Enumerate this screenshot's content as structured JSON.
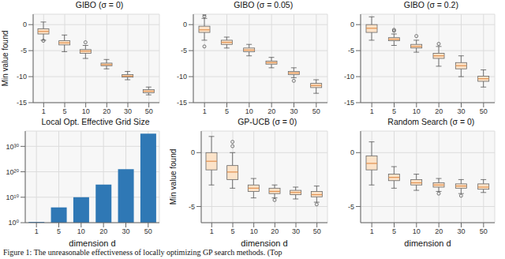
{
  "caption": "Figure 1: The unreasonable effectiveness of locally optimizing GP search methods. (Top",
  "chart_data": [
    {
      "type": "box",
      "title": "GIBO (σ = 0)",
      "ylabel": "Min value found",
      "categories": [
        1,
        5,
        10,
        20,
        30,
        50
      ],
      "ylim": [
        -15,
        2
      ],
      "yticks": [
        0,
        -5,
        -10,
        -15
      ],
      "grid": true,
      "color": "#fce3c9",
      "boxes": [
        {
          "min": -3,
          "q1": -1.8,
          "median": -1.3,
          "q3": -0.8,
          "max": 0.5,
          "outliers": [
            -3.1
          ]
        },
        {
          "min": -5.2,
          "q1": -3.9,
          "median": -3.5,
          "q3": -3.1,
          "max": -2.0,
          "outliers": []
        },
        {
          "min": -6.5,
          "q1": -5.5,
          "median": -5.1,
          "q3": -4.8,
          "max": -4.0,
          "outliers": [
            -3.4
          ]
        },
        {
          "min": -8.5,
          "q1": -7.9,
          "median": -7.7,
          "q3": -7.4,
          "max": -6.7,
          "outliers": []
        },
        {
          "min": -10.6,
          "q1": -10.1,
          "median": -9.9,
          "q3": -9.6,
          "max": -9.0,
          "outliers": []
        },
        {
          "min": -13.5,
          "q1": -13.1,
          "median": -12.8,
          "q3": -12.5,
          "max": -12.0,
          "outliers": []
        }
      ]
    },
    {
      "type": "box",
      "title": "GIBO (σ = 0.05)",
      "categories": [
        1,
        5,
        10,
        20,
        30,
        50
      ],
      "ylim": [
        -15,
        2
      ],
      "yticks": [
        0,
        -5,
        -10,
        -15
      ],
      "grid": true,
      "color": "#fce3c9",
      "boxes": [
        {
          "min": -3,
          "q1": -1.5,
          "median": -1,
          "q3": -0.3,
          "max": 1.2,
          "outliers": [
            2.0,
            1.6,
            -4.2
          ]
        },
        {
          "min": -4.5,
          "q1": -3.8,
          "median": -3.4,
          "q3": -3.0,
          "max": -2.4,
          "outliers": []
        },
        {
          "min": -6.0,
          "q1": -5.2,
          "median": -4.9,
          "q3": -4.5,
          "max": -3.8,
          "outliers": []
        },
        {
          "min": -8.3,
          "q1": -7.6,
          "median": -7.3,
          "q3": -7.0,
          "max": -6.3,
          "outliers": []
        },
        {
          "min": -10.2,
          "q1": -9.6,
          "median": -9.3,
          "q3": -9.0,
          "max": -8.3,
          "outliers": [
            -10.8
          ]
        },
        {
          "min": -13.2,
          "q1": -12.1,
          "median": -11.7,
          "q3": -11.3,
          "max": -10.6,
          "outliers": []
        }
      ]
    },
    {
      "type": "box",
      "title": "GIBO (σ = 0.2)",
      "categories": [
        1,
        5,
        10,
        20,
        30,
        50
      ],
      "ylim": [
        -15,
        2
      ],
      "yticks": [
        0,
        -5,
        -10,
        -15
      ],
      "grid": true,
      "color": "#fce3c9",
      "boxes": [
        {
          "min": -3,
          "q1": -1.5,
          "median": -0.7,
          "q3": 0,
          "max": 1.5,
          "outliers": []
        },
        {
          "min": -4,
          "q1": -3.1,
          "median": -2.8,
          "q3": -2.5,
          "max": -1.8,
          "outliers": [
            -1.2,
            -1.0
          ]
        },
        {
          "min": -5.3,
          "q1": -4.5,
          "median": -4.2,
          "q3": -3.8,
          "max": -3.0,
          "outliers": [
            -2.2
          ]
        },
        {
          "min": -8,
          "q1": -6.5,
          "median": -6.0,
          "q3": -5.5,
          "max": -4.2,
          "outliers": [
            -3.7
          ]
        },
        {
          "min": -10,
          "q1": -8.5,
          "median": -7.9,
          "q3": -7.3,
          "max": -6.0,
          "outliers": []
        },
        {
          "min": -12,
          "q1": -10.9,
          "median": -10.4,
          "q3": -9.9,
          "max": -8.7,
          "outliers": []
        }
      ]
    },
    {
      "type": "bar",
      "title": "Local Opt. Effective Grid Size",
      "xlabel": "dimension d",
      "categories": [
        1,
        5,
        10,
        20,
        30,
        50
      ],
      "values": [
        2,
        1000000,
        10000000000,
        1000000000000000.0,
        1e+21,
        1e+35
      ],
      "log": "y",
      "ylim": [
        1,
        1e+36
      ],
      "yticks": [
        {
          "value": 1,
          "label": "10⁰"
        },
        {
          "value": 10000000000,
          "label": "10¹⁰"
        },
        {
          "value": 1e+20,
          "label": "10²⁰"
        },
        {
          "value": 1e+30,
          "label": "10³⁰"
        }
      ],
      "grid": true,
      "color": "#2f78b5"
    },
    {
      "type": "box",
      "title": "GP-UCB (σ = 0)",
      "ylabel": "Min value found",
      "xlabel": "dimension d",
      "categories": [
        1,
        5,
        10,
        20,
        30,
        50
      ],
      "ylim": [
        -6.5,
        2
      ],
      "yticks": [
        0,
        -5
      ],
      "grid": true,
      "color": "#fce3c9",
      "boxes": [
        {
          "min": -3,
          "q1": -1.6,
          "median": -0.8,
          "q3": 0,
          "max": 1.5,
          "outliers": []
        },
        {
          "min": -3.3,
          "q1": -2.5,
          "median": -1.8,
          "q3": -1.2,
          "max": 0,
          "outliers": [
            1.0,
            0.6
          ]
        },
        {
          "min": -4.2,
          "q1": -3.6,
          "median": -3.3,
          "q3": -3.0,
          "max": -2.4,
          "outliers": []
        },
        {
          "min": -4.2,
          "q1": -3.8,
          "median": -3.6,
          "q3": -3.3,
          "max": -3.0,
          "outliers": [
            -4.4
          ]
        },
        {
          "min": -4.3,
          "q1": -3.9,
          "median": -3.7,
          "q3": -3.5,
          "max": -3.2,
          "outliers": []
        },
        {
          "min": -4.6,
          "q1": -4.1,
          "median": -3.9,
          "q3": -3.6,
          "max": -3.1,
          "outliers": [
            -4.8
          ]
        }
      ]
    },
    {
      "type": "box",
      "title": "Random Search (σ = 0)",
      "xlabel": "dimension d",
      "categories": [
        1,
        5,
        10,
        20,
        30,
        50
      ],
      "ylim": [
        -6.5,
        2
      ],
      "yticks": [
        0,
        -5
      ],
      "grid": true,
      "color": "#fce3c9",
      "boxes": [
        {
          "min": -3,
          "q1": -1.6,
          "median": -1,
          "q3": -0.3,
          "max": 1.0,
          "outliers": []
        },
        {
          "min": -3.3,
          "q1": -2.6,
          "median": -2.3,
          "q3": -2.0,
          "max": -1.3,
          "outliers": []
        },
        {
          "min": -3.5,
          "q1": -3.0,
          "median": -2.8,
          "q3": -2.5,
          "max": -2.0,
          "outliers": []
        },
        {
          "min": -3.6,
          "q1": -3.2,
          "median": -3.0,
          "q3": -2.8,
          "max": -2.4,
          "outliers": [
            -3.8
          ]
        },
        {
          "min": -3.8,
          "q1": -3.3,
          "median": -3.1,
          "q3": -2.9,
          "max": -2.5,
          "outliers": [
            -4.0
          ]
        },
        {
          "min": -3.7,
          "q1": -3.4,
          "median": -3.2,
          "q3": -2.9,
          "max": -2.5,
          "outliers": []
        }
      ]
    }
  ]
}
